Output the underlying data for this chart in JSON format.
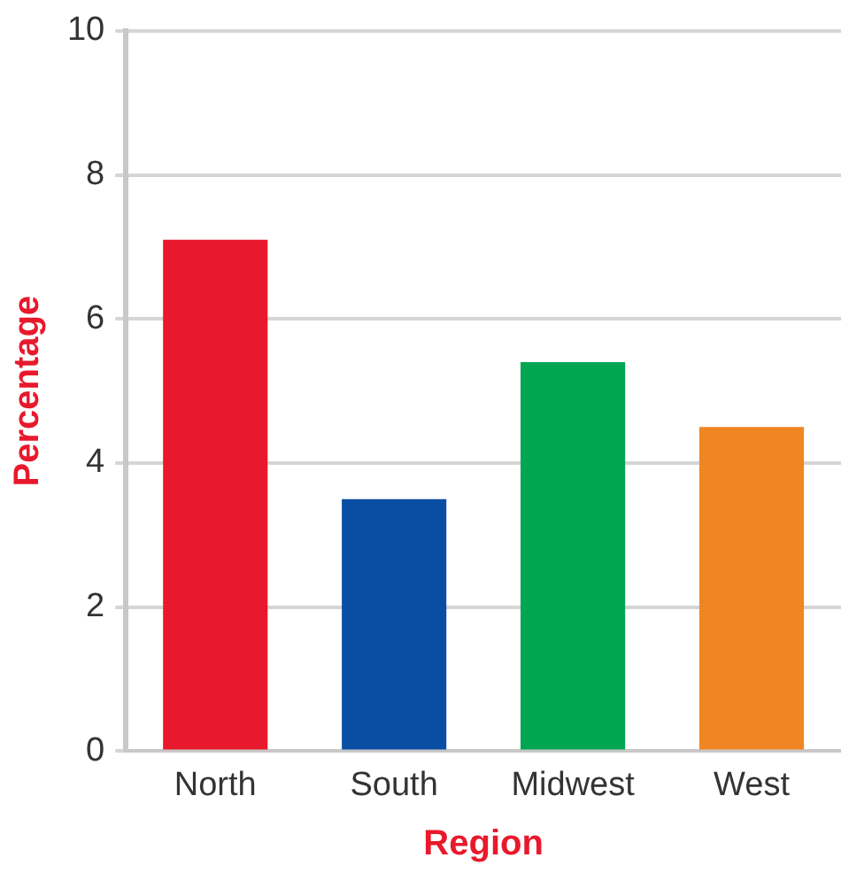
{
  "chart_data": {
    "type": "bar",
    "xlabel": "Region",
    "ylabel": "Percentage",
    "categories": [
      "North",
      "South",
      "Midwest",
      "West"
    ],
    "values": [
      7.1,
      3.5,
      5.4,
      4.5
    ],
    "colors": [
      "#e8192c",
      "#0a4ea3",
      "#00a651",
      "#ef8523"
    ],
    "ylim": [
      0,
      10
    ],
    "yticks": [
      0,
      2,
      4,
      6,
      8,
      10
    ],
    "grid": "y",
    "legend": false
  }
}
